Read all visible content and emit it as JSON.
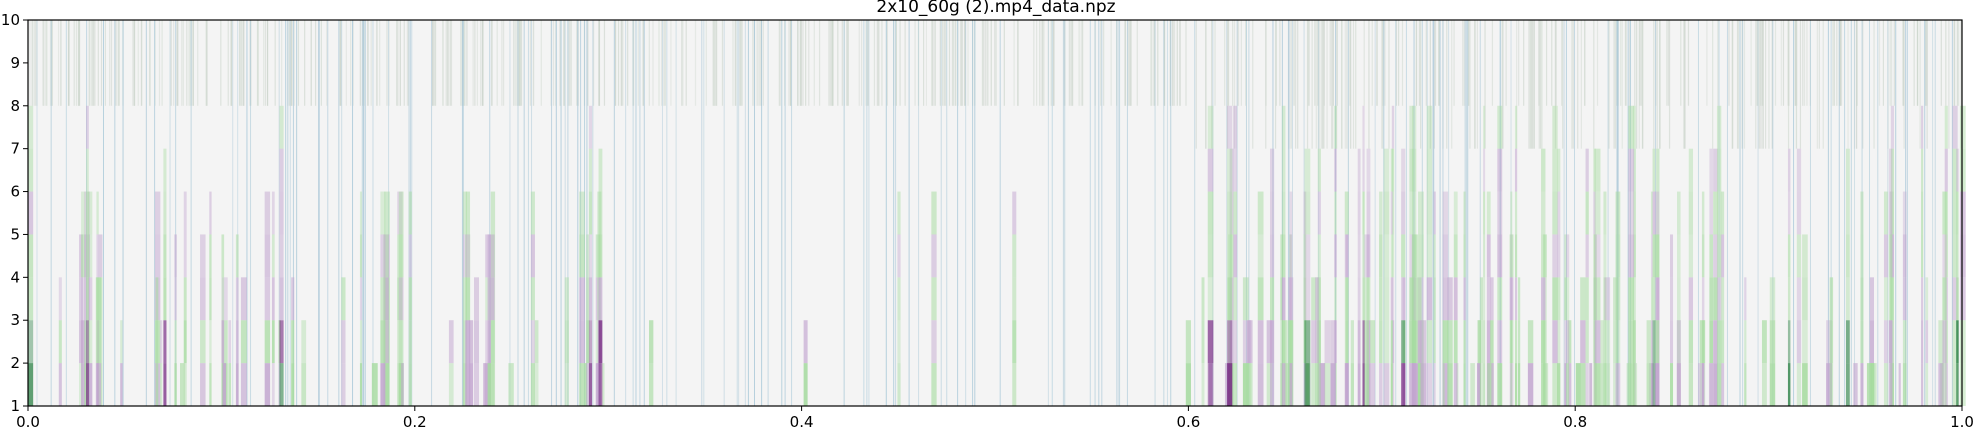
{
  "chart_data": {
    "type": "heatmap",
    "title": "2x10_60g (2).mp4_data.npz",
    "xlabel": "",
    "ylabel": "",
    "xlim": [
      0.0,
      1.0
    ],
    "ylim": [
      1,
      10
    ],
    "x_ticks": [
      "0.0",
      "0.2",
      "0.4",
      "0.6",
      "0.8",
      "1.0"
    ],
    "y_ticks": [
      "1",
      "2",
      "3",
      "4",
      "5",
      "6",
      "7",
      "8",
      "9",
      "10"
    ],
    "grid": false,
    "colormap": [
      "#1b7837",
      "#a6dba0",
      "#f7f7f7",
      "#c2a5cf",
      "#762a83"
    ],
    "background_color": "#f4f4f4",
    "stripe_color": "#a9c8d8",
    "regions": [
      {
        "x": [
          0.0,
          0.3
        ],
        "activity": "green-purple bursts in rows 1-7"
      },
      {
        "x": [
          0.3,
          0.6
        ],
        "activity": "mostly neutral"
      },
      {
        "x": [
          0.6,
          1.0
        ],
        "activity": "dense green-purple bursts in rows 1-10"
      }
    ],
    "highlight_x": [
      0.0,
      0.03,
      0.07,
      0.13,
      0.29,
      0.295,
      0.61,
      0.62,
      0.66,
      0.69,
      0.71,
      0.84,
      0.91,
      0.94,
      1.0
    ]
  }
}
